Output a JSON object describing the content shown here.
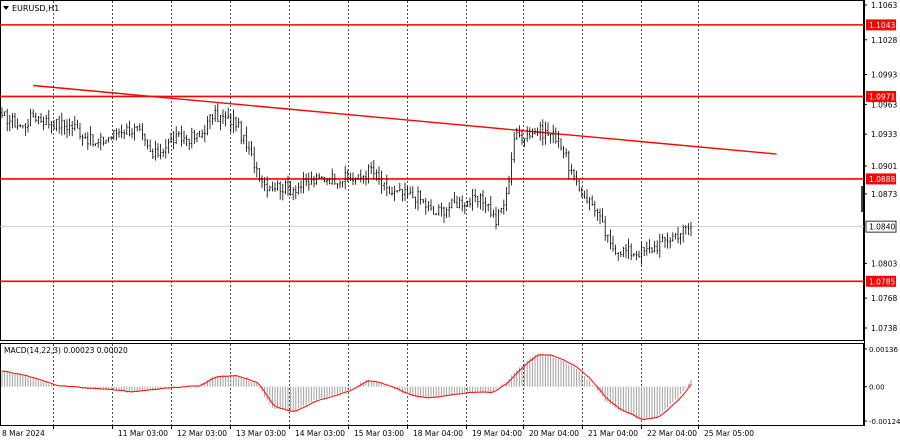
{
  "chart_header": {
    "symbol_label": "EURUSD,H1"
  },
  "macd_header": {
    "label": "MACD(14,22,3) 0.00023 0.00020"
  },
  "colors": {
    "level": "#ff0000",
    "bull": "#000000",
    "bear": "#000000",
    "grid": "#000000",
    "macd_hist": "#a0a0a0",
    "signal": "#ff0000",
    "current": "#c0c0c0"
  },
  "chart_data": [
    {
      "type": "candlestick",
      "title": "EURUSD,H1",
      "ylim": [
        1.0716,
        1.1065
      ],
      "price_ticks": [
        "1.1063",
        "1.1028",
        "1.0993",
        "1.0963",
        "1.0933",
        "1.0901",
        "1.0873",
        "1.0803",
        "1.0768",
        "1.0738"
      ],
      "time_ticks": [
        "8 Mar 2024",
        "11 Mar 03:00",
        "12 Mar 03:00",
        "13 Mar 03:00",
        "14 Mar 03:00",
        "15 Mar 03:00",
        "18 Mar 04:00",
        "19 Mar 04:00",
        "20 Mar 04:00",
        "21 Mar 04:00",
        "22 Mar 04:00",
        "25 Mar 05:00"
      ],
      "horizontal_levels": [
        "1.1043",
        "1.0971",
        "1.0888",
        "1.0785"
      ],
      "current_price": "1.0840",
      "trendline": {
        "start": {
          "time_index": 2,
          "price": 1.0982
        },
        "end": {
          "time_index": 271,
          "price": 1.0913
        }
      },
      "price_path_anchors": [
        [
          0,
          1.0952
        ],
        [
          8,
          1.094
        ],
        [
          12,
          1.0952
        ],
        [
          18,
          1.0945
        ],
        [
          28,
          1.094
        ],
        [
          36,
          1.0922
        ],
        [
          46,
          1.0938
        ],
        [
          52,
          1.0937
        ],
        [
          58,
          1.091
        ],
        [
          66,
          1.0928
        ],
        [
          76,
          1.093
        ],
        [
          81,
          1.0952
        ],
        [
          90,
          1.0945
        ],
        [
          94,
          1.092
        ],
        [
          101,
          1.0883
        ],
        [
          111,
          1.0878
        ],
        [
          124,
          1.0889
        ],
        [
          137,
          1.0888
        ],
        [
          142,
          1.0898
        ],
        [
          148,
          1.0875
        ],
        [
          160,
          1.087
        ],
        [
          166,
          1.0853
        ],
        [
          176,
          1.0865
        ],
        [
          186,
          1.0866
        ],
        [
          190,
          1.0845
        ],
        [
          194,
          1.087
        ],
        [
          197,
          1.093
        ],
        [
          206,
          1.0937
        ],
        [
          214,
          1.093
        ],
        [
          221,
          1.088
        ],
        [
          228,
          1.086
        ],
        [
          234,
          1.082
        ],
        [
          242,
          1.0814
        ],
        [
          248,
          1.0815
        ],
        [
          259,
          1.0832
        ],
        [
          265,
          1.084
        ]
      ]
    },
    {
      "type": "macd",
      "title": "MACD(14,22,3) 0.00023 0.00020",
      "ylim": [
        -0.00124,
        0.00136
      ],
      "value_ticks": [
        "0.00136",
        "0.00",
        "-0.00124"
      ],
      "macd_value": 0.00023,
      "signal_value": 0.0002
    }
  ]
}
